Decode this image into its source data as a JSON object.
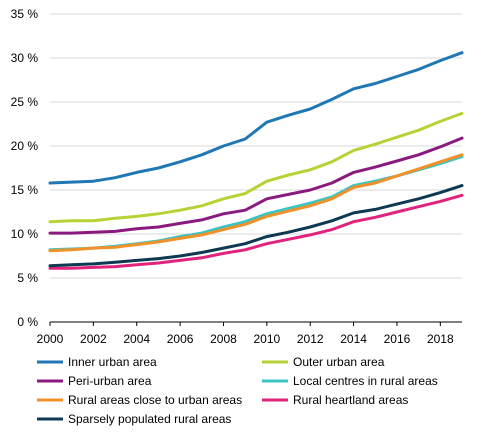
{
  "chart_data": {
    "type": "line",
    "title": "",
    "xlabel": "",
    "ylabel": "",
    "x": [
      2000,
      2001,
      2002,
      2003,
      2004,
      2005,
      2006,
      2007,
      2008,
      2009,
      2010,
      2011,
      2012,
      2013,
      2014,
      2015,
      2016,
      2017,
      2018,
      2019
    ],
    "xlim": [
      2000,
      2019
    ],
    "ylim": [
      0,
      35
    ],
    "x_ticks": [
      "2000",
      "2002",
      "2004",
      "2006",
      "2008",
      "2010",
      "2012",
      "2014",
      "2016",
      "2018"
    ],
    "y_ticks": [
      "0 %",
      "5 %",
      "10 %",
      "15 %",
      "20 %",
      "25 %",
      "30 %",
      "35 %"
    ],
    "grid": "horizontal",
    "legend_position": "bottom",
    "series": [
      {
        "name": "Inner urban area",
        "color": "#1f77b4",
        "values": [
          15.8,
          15.9,
          16.0,
          16.4,
          17.0,
          17.5,
          18.2,
          19.0,
          20.0,
          20.8,
          22.7,
          23.5,
          24.2,
          25.3,
          26.5,
          27.1,
          27.9,
          28.7,
          29.7,
          30.6
        ]
      },
      {
        "name": "Outer urban area",
        "color": "#b5d334",
        "values": [
          11.4,
          11.5,
          11.5,
          11.8,
          12.0,
          12.3,
          12.7,
          13.2,
          14.0,
          14.6,
          16.0,
          16.7,
          17.3,
          18.2,
          19.5,
          20.2,
          21.0,
          21.8,
          22.8,
          23.7
        ]
      },
      {
        "name": "Peri-urban area",
        "color": "#8b1a7e",
        "values": [
          10.1,
          10.1,
          10.2,
          10.3,
          10.6,
          10.8,
          11.2,
          11.6,
          12.3,
          12.7,
          14.0,
          14.5,
          15.0,
          15.8,
          17.0,
          17.6,
          18.3,
          19.0,
          19.9,
          20.9
        ]
      },
      {
        "name": "Local centres in rural areas",
        "color": "#3cc4c4",
        "values": [
          8.2,
          8.3,
          8.4,
          8.6,
          8.9,
          9.2,
          9.7,
          10.1,
          10.8,
          11.4,
          12.3,
          12.9,
          13.5,
          14.2,
          15.5,
          16.0,
          16.6,
          17.3,
          18.0,
          18.8
        ]
      },
      {
        "name": "Rural areas close to urban areas",
        "color": "#f0912a",
        "values": [
          8.1,
          8.2,
          8.4,
          8.5,
          8.8,
          9.1,
          9.5,
          9.9,
          10.5,
          11.1,
          12.0,
          12.6,
          13.2,
          14.0,
          15.3,
          15.8,
          16.6,
          17.4,
          18.2,
          19.0
        ]
      },
      {
        "name": "Rural heartland areas",
        "color": "#e0237c",
        "values": [
          6.1,
          6.1,
          6.2,
          6.3,
          6.5,
          6.7,
          7.0,
          7.3,
          7.8,
          8.2,
          8.9,
          9.4,
          9.9,
          10.5,
          11.4,
          11.9,
          12.5,
          13.1,
          13.7,
          14.4
        ]
      },
      {
        "name": "Sparsely populated rural areas",
        "color": "#0d3a52",
        "values": [
          6.4,
          6.5,
          6.6,
          6.8,
          7.0,
          7.2,
          7.5,
          7.9,
          8.4,
          8.9,
          9.7,
          10.2,
          10.8,
          11.5,
          12.4,
          12.8,
          13.4,
          14.0,
          14.7,
          15.5
        ]
      }
    ]
  }
}
